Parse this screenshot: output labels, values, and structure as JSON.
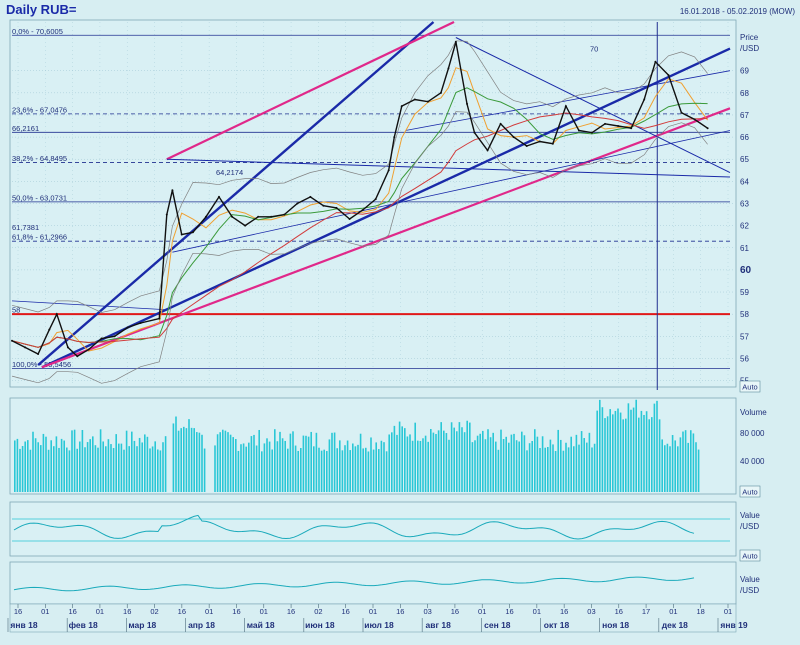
{
  "header": {
    "title": "Daily RUB=",
    "date_range": "16.01.2018 - 05.02.2019 (MOW)"
  },
  "colors": {
    "background": "#d7eef2",
    "panel": "#d9f0f4",
    "grid": "#9fc6d3",
    "price_line": "#101010",
    "volume": "#29c7d6",
    "channel_blue": "#1a2aa8",
    "channel_pink": "#e0288a",
    "support_red": "#e01818",
    "fib_line": "#203090",
    "ma_orange": "#f0a030",
    "ma_green": "#3a9a3a",
    "ma_red": "#d23c3c",
    "band_gray": "#808080"
  },
  "price_panel": {
    "axis_title_1": "Price",
    "axis_title_2": "/USD",
    "auto_label": "Auto",
    "tick_labels": [
      "69",
      "68",
      "67",
      "66",
      "65",
      "64",
      "63",
      "62",
      "61",
      "60",
      "59",
      "58",
      "57",
      "56",
      "55"
    ],
    "fib_levels": [
      {
        "label": "0,0% - 70,6005",
        "value": 70.6005,
        "dashed": false
      },
      {
        "label": "23,6% - 67,0476",
        "value": 67.0476,
        "dashed": true
      },
      {
        "label": "38,2% - 64,8495",
        "value": 64.8495,
        "dashed": true
      },
      {
        "label": "50,0% - 63,0731",
        "value": 63.0731,
        "dashed": false
      },
      {
        "label": "61,8% - 61,2966",
        "value": 61.2966,
        "dashed": true
      },
      {
        "label": "100,0% - 55,5456",
        "value": 55.5456,
        "dashed": false
      }
    ],
    "annotations": [
      {
        "label": "66,2161",
        "value": 66.2161
      },
      {
        "label": "64,2174",
        "value": 64.2174
      },
      {
        "label": "61,7381",
        "value": 61.7381
      },
      {
        "label": "58",
        "value": 58
      },
      {
        "label": "70",
        "value": 70
      }
    ]
  },
  "volume_panel": {
    "axis_title": "Volume",
    "tick_labels": [
      "80 000",
      "40 000"
    ],
    "auto_label": "Auto"
  },
  "indicator_panel_1": {
    "axis_title_1": "Value",
    "axis_title_2": "/USD",
    "auto_label": "Auto"
  },
  "indicator_panel_2": {
    "axis_title_1": "Value",
    "axis_title_2": "/USD"
  },
  "x_axis": {
    "day_ticks": [
      "16",
      "01",
      "16",
      "01",
      "16",
      "02",
      "16",
      "01",
      "16",
      "01",
      "16",
      "02",
      "16",
      "01",
      "16",
      "03",
      "16",
      "01",
      "16",
      "01",
      "16",
      "03",
      "16",
      "17",
      "01",
      "18",
      "01"
    ],
    "month_labels": [
      "янв 18",
      "фев 18",
      "мар 18",
      "апр 18",
      "май 18",
      "июн 18",
      "июл 18",
      "авг 18",
      "сен 18",
      "окт 18",
      "ноя 18",
      "дек 18",
      "янв 19"
    ]
  },
  "chart_data": {
    "type": "line",
    "title": "Daily RUB=",
    "ylabel": "Price /USD",
    "ylim": [
      54.8,
      71.2
    ],
    "x_range": [
      "2018-01-16",
      "2019-02-05"
    ],
    "series": [
      {
        "name": "",
        "points": [
          [
            "2018-01-16",
            56.8
          ],
          [
            "2018-01-23",
            56.5
          ],
          [
            "2018-01-30",
            56.2
          ],
          [
            "2018-02-05",
            57.3
          ],
          [
            "2018-02-09",
            58.0
          ],
          [
            "2018-02-15",
            56.5
          ],
          [
            "2018-02-20",
            56.1
          ],
          [
            "2018-02-26",
            56.4
          ],
          [
            "2018-03-05",
            56.9
          ],
          [
            "2018-03-12",
            57.0
          ],
          [
            "2018-03-19",
            57.4
          ],
          [
            "2018-03-26",
            57.6
          ],
          [
            "2018-04-05",
            57.8
          ],
          [
            "2018-04-09",
            62.5
          ],
          [
            "2018-04-12",
            63.6
          ],
          [
            "2018-04-17",
            61.6
          ],
          [
            "2018-04-23",
            61.7
          ],
          [
            "2018-04-30",
            62.4
          ],
          [
            "2018-05-07",
            63.3
          ],
          [
            "2018-05-14",
            62.4
          ],
          [
            "2018-05-21",
            62.0
          ],
          [
            "2018-05-28",
            62.4
          ],
          [
            "2018-06-04",
            62.4
          ],
          [
            "2018-06-11",
            62.5
          ],
          [
            "2018-06-18",
            63.0
          ],
          [
            "2018-06-25",
            63.3
          ],
          [
            "2018-07-02",
            62.9
          ],
          [
            "2018-07-09",
            62.8
          ],
          [
            "2018-07-16",
            62.3
          ],
          [
            "2018-07-23",
            62.7
          ],
          [
            "2018-07-30",
            63.2
          ],
          [
            "2018-08-06",
            64.5
          ],
          [
            "2018-08-09",
            66.0
          ],
          [
            "2018-08-13",
            67.4
          ],
          [
            "2018-08-20",
            67.7
          ],
          [
            "2018-08-27",
            67.6
          ],
          [
            "2018-09-03",
            68.0
          ],
          [
            "2018-09-07",
            69.1
          ],
          [
            "2018-09-11",
            70.3
          ],
          [
            "2018-09-17",
            67.5
          ],
          [
            "2018-09-21",
            66.2
          ],
          [
            "2018-09-28",
            65.4
          ],
          [
            "2018-10-05",
            66.6
          ],
          [
            "2018-10-12",
            66.0
          ],
          [
            "2018-10-19",
            65.6
          ],
          [
            "2018-10-26",
            65.8
          ],
          [
            "2018-11-02",
            65.7
          ],
          [
            "2018-11-09",
            67.4
          ],
          [
            "2018-11-16",
            66.3
          ],
          [
            "2018-11-23",
            66.2
          ],
          [
            "2018-11-30",
            66.6
          ],
          [
            "2018-12-07",
            66.5
          ],
          [
            "2018-12-14",
            66.4
          ],
          [
            "2018-12-21",
            67.7
          ],
          [
            "2018-12-27",
            69.4
          ],
          [
            "2019-01-03",
            68.8
          ],
          [
            "2019-01-10",
            67.1
          ],
          [
            "2019-01-17",
            66.8
          ],
          [
            "2019-01-24",
            66.4
          ]
        ]
      }
    ]
  }
}
